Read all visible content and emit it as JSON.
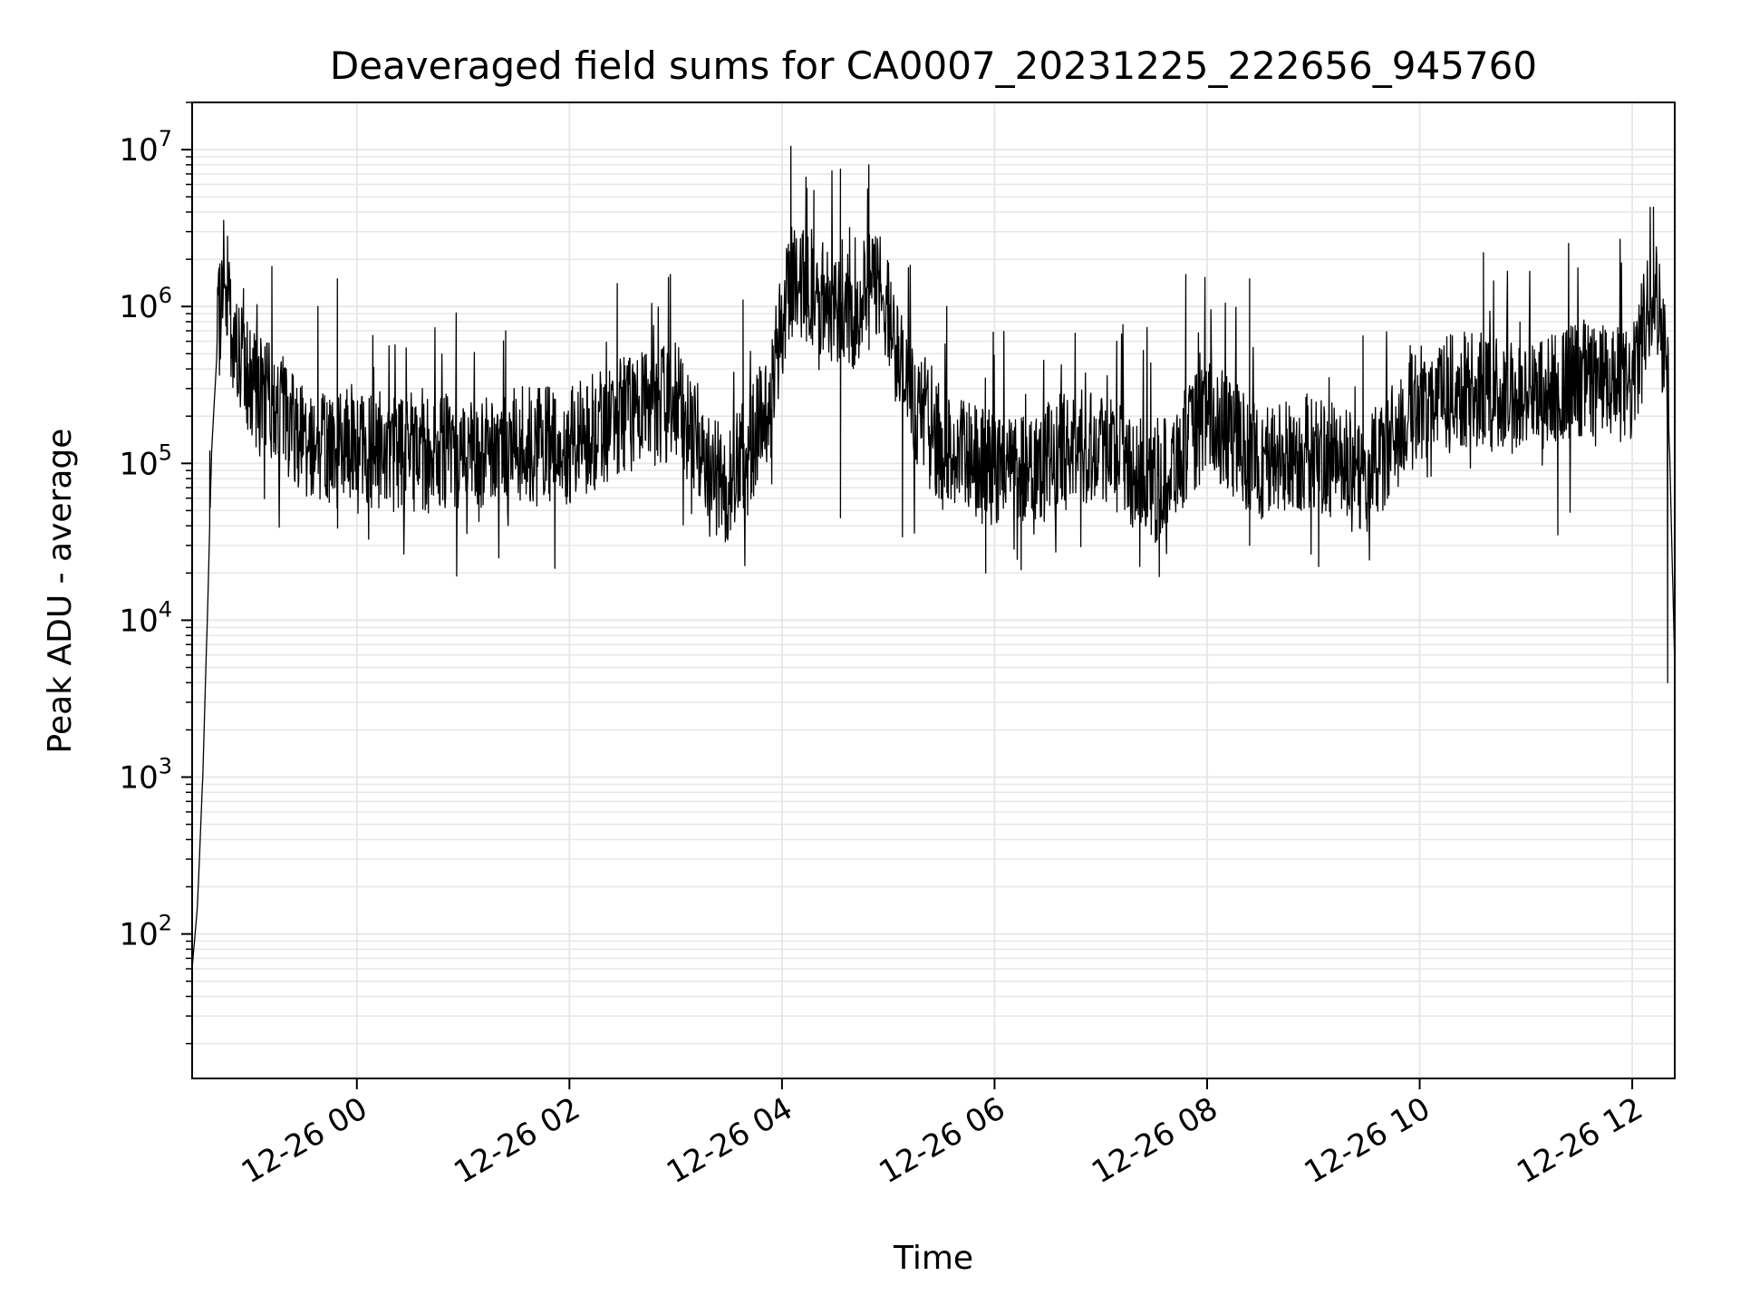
{
  "chart_data": {
    "type": "line",
    "title": "Deaveraged field sums for CA0007_20231225_222656_945760",
    "xlabel": "Time",
    "ylabel": "Peak ADU - average",
    "xlim": [
      "2023-12-25 22:27",
      "2023-12-26 12:24"
    ],
    "ylim": [
      12,
      20000000
    ],
    "y_scale": "log",
    "grid": true,
    "line_color": "#000000",
    "grid_color": "#e6e6e6",
    "x_ticks": [
      {
        "t": "2023-12-26 00:00",
        "label": "12-26 00"
      },
      {
        "t": "2023-12-26 02:00",
        "label": "12-26 02"
      },
      {
        "t": "2023-12-26 04:00",
        "label": "12-26 04"
      },
      {
        "t": "2023-12-26 06:00",
        "label": "12-26 06"
      },
      {
        "t": "2023-12-26 08:00",
        "label": "12-26 08"
      },
      {
        "t": "2023-12-26 10:00",
        "label": "12-26 10"
      },
      {
        "t": "2023-12-26 12:00",
        "label": "12-26 12"
      }
    ],
    "y_ticks": [
      {
        "value": 100,
        "base": "10",
        "exp": "2"
      },
      {
        "value": 1000,
        "base": "10",
        "exp": "3"
      },
      {
        "value": 10000,
        "base": "10",
        "exp": "4"
      },
      {
        "value": 100000,
        "base": "10",
        "exp": "5"
      },
      {
        "value": 1000000,
        "base": "10",
        "exp": "6"
      },
      {
        "value": 10000000,
        "base": "10",
        "exp": "7"
      }
    ],
    "series": [
      {
        "x": [
          "2023-12-25 22:27",
          "2023-12-25 22:30",
          "2023-12-25 22:33",
          "2023-12-25 22:36",
          "2023-12-25 22:38",
          "2023-12-25 22:41",
          "2023-12-25 22:45",
          "2023-12-25 22:50",
          "2023-12-25 23:00",
          "2023-12-25 23:10",
          "2023-12-25 23:20",
          "2023-12-25 23:30",
          "2023-12-25 23:45",
          "2023-12-26 00:00",
          "2023-12-26 00:30",
          "2023-12-26 01:00",
          "2023-12-26 01:30",
          "2023-12-26 02:00",
          "2023-12-26 02:30",
          "2023-12-26 03:00",
          "2023-12-26 03:20",
          "2023-12-26 03:30",
          "2023-12-26 03:50",
          "2023-12-26 04:05",
          "2023-12-26 04:20",
          "2023-12-26 04:40",
          "2023-12-26 04:55",
          "2023-12-26 05:10",
          "2023-12-26 05:30",
          "2023-12-26 06:00",
          "2023-12-26 06:30",
          "2023-12-26 07:00",
          "2023-12-26 07:30",
          "2023-12-26 08:00",
          "2023-12-26 08:30",
          "2023-12-26 09:00",
          "2023-12-26 09:30",
          "2023-12-26 10:00",
          "2023-12-26 10:30",
          "2023-12-26 11:00",
          "2023-12-26 11:30",
          "2023-12-26 12:00",
          "2023-12-26 12:12",
          "2023-12-26 12:20",
          "2023-12-26 12:24"
        ],
        "y": [
          60,
          150,
          1000,
          15000,
          120000,
          500000,
          2000000,
          600000,
          300000,
          250000,
          200000,
          150000,
          120000,
          130000,
          110000,
          120000,
          130000,
          130000,
          200000,
          250000,
          100000,
          70000,
          200000,
          1500000,
          1200000,
          900000,
          1500000,
          300000,
          120000,
          90000,
          110000,
          140000,
          70000,
          200000,
          100000,
          120000,
          80000,
          250000,
          300000,
          250000,
          350000,
          300000,
          1500000,
          400000,
          5000
        ]
      }
    ],
    "spikes": [
      {
        "t": "2023-12-25 22:37",
        "y": 120000
      },
      {
        "t": "2023-12-25 22:47",
        "y": 2800000
      },
      {
        "t": "2023-12-25 22:56",
        "y": 1300000
      },
      {
        "t": "2023-12-25 23:12",
        "y": 1800000
      },
      {
        "t": "2023-12-25 23:38",
        "y": 1000000
      },
      {
        "t": "2023-12-25 23:49",
        "y": 1500000
      },
      {
        "t": "2023-12-26 01:24",
        "y": 700000
      },
      {
        "t": "2023-12-26 02:27",
        "y": 1400000
      },
      {
        "t": "2023-12-26 02:57",
        "y": 1600000
      },
      {
        "t": "2023-12-26 03:38",
        "y": 1100000
      },
      {
        "t": "2023-12-26 04:05",
        "y": 10500000
      },
      {
        "t": "2023-12-26 04:18",
        "y": 5500000
      },
      {
        "t": "2023-12-26 04:33",
        "y": 7500000
      },
      {
        "t": "2023-12-26 04:49",
        "y": 8000000
      },
      {
        "t": "2023-12-26 05:33",
        "y": 1000000
      },
      {
        "t": "2023-12-26 07:09",
        "y": 600000
      },
      {
        "t": "2023-12-26 07:48",
        "y": 1600000
      },
      {
        "t": "2023-12-26 08:24",
        "y": 1500000
      },
      {
        "t": "2023-12-26 09:28",
        "y": 650000
      },
      {
        "t": "2023-12-26 10:36",
        "y": 2200000
      },
      {
        "t": "2023-12-26 12:12",
        "y": 4300000
      }
    ],
    "dips": [
      {
        "t": "2023-12-26 03:23",
        "y": 35000
      },
      {
        "t": "2023-12-26 04:33",
        "y": 45000
      },
      {
        "t": "2023-12-26 05:08",
        "y": 34000
      },
      {
        "t": "2023-12-26 05:55",
        "y": 20000
      },
      {
        "t": "2023-12-26 06:15",
        "y": 21000
      },
      {
        "t": "2023-12-26 07:22",
        "y": 22000
      },
      {
        "t": "2023-12-26 07:33",
        "y": 19000
      },
      {
        "t": "2023-12-26 08:24",
        "y": 30000
      },
      {
        "t": "2023-12-26 09:03",
        "y": 22000
      },
      {
        "t": "2023-12-26 11:18",
        "y": 35000
      },
      {
        "t": "2023-12-26 12:20",
        "y": 4000
      }
    ]
  }
}
